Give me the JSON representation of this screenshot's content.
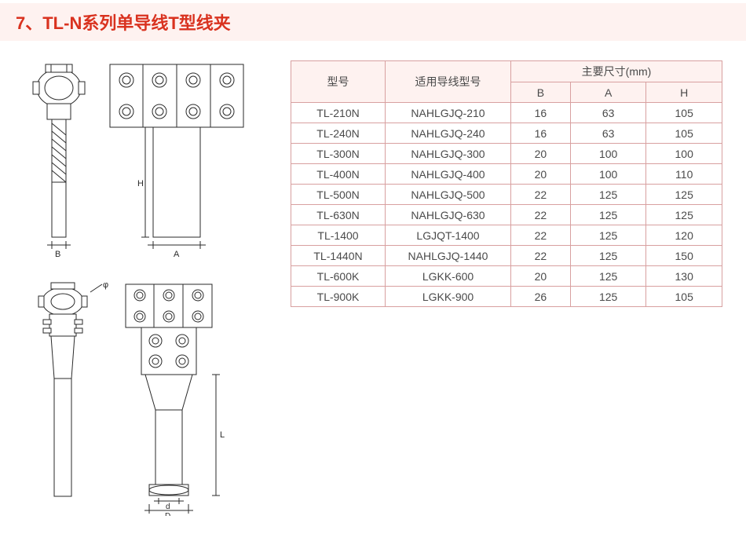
{
  "title": {
    "text": "7、TL-N系列单导线T型线夹",
    "color": "#d9321f",
    "bg": "#fef2f0"
  },
  "diagram": {
    "stroke": "#2a2a2a",
    "fill": "#f5f5f5",
    "labels": {
      "B": "B",
      "A": "A",
      "H": "H",
      "phi": "φ",
      "d": "d",
      "D": "D",
      "L": "L"
    }
  },
  "table": {
    "border_color": "#d8a0a0",
    "header_bg": "#fef2f0",
    "text_color": "#4a4a4a",
    "headers": {
      "model": "型号",
      "wire": "适用导线型号",
      "dims": "主要尺寸(mm)",
      "B": "B",
      "A": "A",
      "H": "H"
    },
    "rows": [
      {
        "model": "TL-210N",
        "wire": "NAHLGJQ-210",
        "B": "16",
        "A": "63",
        "H": "105"
      },
      {
        "model": "TL-240N",
        "wire": "NAHLGJQ-240",
        "B": "16",
        "A": "63",
        "H": "105"
      },
      {
        "model": "TL-300N",
        "wire": "NAHLGJQ-300",
        "B": "20",
        "A": "100",
        "H": "100"
      },
      {
        "model": "TL-400N",
        "wire": "NAHLGJQ-400",
        "B": "20",
        "A": "100",
        "H": "110"
      },
      {
        "model": "TL-500N",
        "wire": "NAHLGJQ-500",
        "B": "22",
        "A": "125",
        "H": "125"
      },
      {
        "model": "TL-630N",
        "wire": "NAHLGJQ-630",
        "B": "22",
        "A": "125",
        "H": "125"
      },
      {
        "model": "TL-1400",
        "wire": "LGJQT-1400",
        "B": "22",
        "A": "125",
        "H": "120"
      },
      {
        "model": "TL-1440N",
        "wire": "NAHLGJQ-1440",
        "B": "22",
        "A": "125",
        "H": "150"
      },
      {
        "model": "TL-600K",
        "wire": "LGKK-600",
        "B": "20",
        "A": "125",
        "H": "130"
      },
      {
        "model": "TL-900K",
        "wire": "LGKK-900",
        "B": "26",
        "A": "125",
        "H": "105"
      }
    ]
  }
}
